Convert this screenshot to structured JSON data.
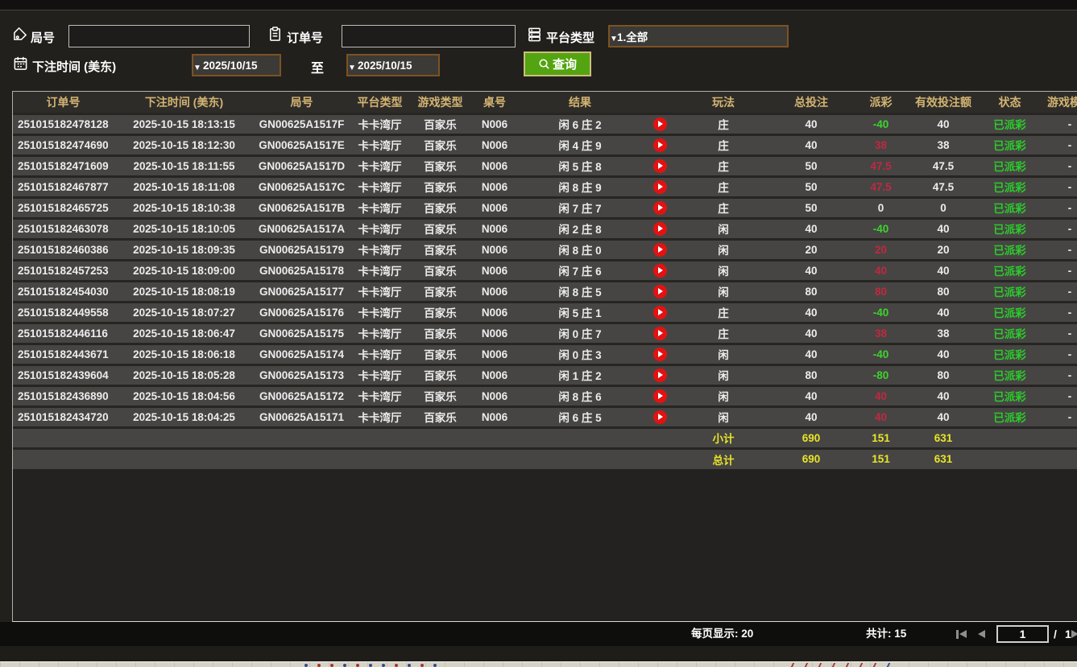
{
  "filters": {
    "round_label": "局号",
    "round_value": "",
    "order_label": "订单号",
    "order_value": "",
    "platform_label": "平台类型",
    "platform_value": "1.全部",
    "bet_time_label": "下注时间 (美东)",
    "date_from": "2025/10/15",
    "to_label": "至",
    "date_to": "2025/10/15",
    "query_label": "查询"
  },
  "icons": {
    "round": "tag-icon",
    "order": "clipboard-icon",
    "platform": "server-icon",
    "bet_time": "calendar-icon",
    "query": "search-icon",
    "result_row": "play-icon"
  },
  "colors": {
    "header_gold": "#d4b472",
    "win_red": "#c12840",
    "loss_green": "#3fd22f",
    "status_green": "#2ccb2c",
    "total_yellow": "#e8e428",
    "query_green": "#53a410"
  },
  "table": {
    "columns": [
      {
        "key": "order",
        "label": "订单号"
      },
      {
        "key": "time",
        "label": "下注时间 (美东)"
      },
      {
        "key": "round",
        "label": "局号"
      },
      {
        "key": "platform",
        "label": "平台类型"
      },
      {
        "key": "game",
        "label": "游戏类型"
      },
      {
        "key": "table_no",
        "label": "桌号"
      },
      {
        "key": "result",
        "label": "结果"
      },
      {
        "key": "play",
        "label": ""
      },
      {
        "key": "playtype",
        "label": "玩法"
      },
      {
        "key": "bet",
        "label": "总投注"
      },
      {
        "key": "payout",
        "label": "派彩"
      },
      {
        "key": "valid",
        "label": "有效投注额"
      },
      {
        "key": "status",
        "label": "状态"
      },
      {
        "key": "mode",
        "label": "游戏模式"
      }
    ],
    "rows": [
      {
        "order": "251015182478128",
        "time": "2025-10-15 18:13:15",
        "round": "GN00625A1517F",
        "platform": "卡卡湾厅",
        "game": "百家乐",
        "table_no": "N006",
        "result": "闲 6 庄 2",
        "playtype": "庄",
        "bet": "40",
        "payout": "-40",
        "payout_class": "neg",
        "valid": "40",
        "status": "已派彩",
        "mode": "-"
      },
      {
        "order": "251015182474690",
        "time": "2025-10-15 18:12:30",
        "round": "GN00625A1517E",
        "platform": "卡卡湾厅",
        "game": "百家乐",
        "table_no": "N006",
        "result": "闲 4 庄 9",
        "playtype": "庄",
        "bet": "40",
        "payout": "38",
        "payout_class": "pos",
        "valid": "38",
        "status": "已派彩",
        "mode": "-"
      },
      {
        "order": "251015182471609",
        "time": "2025-10-15 18:11:55",
        "round": "GN00625A1517D",
        "platform": "卡卡湾厅",
        "game": "百家乐",
        "table_no": "N006",
        "result": "闲 5 庄 8",
        "playtype": "庄",
        "bet": "50",
        "payout": "47.5",
        "payout_class": "pos",
        "valid": "47.5",
        "status": "已派彩",
        "mode": "-"
      },
      {
        "order": "251015182467877",
        "time": "2025-10-15 18:11:08",
        "round": "GN00625A1517C",
        "platform": "卡卡湾厅",
        "game": "百家乐",
        "table_no": "N006",
        "result": "闲 8 庄 9",
        "playtype": "庄",
        "bet": "50",
        "payout": "47.5",
        "payout_class": "pos",
        "valid": "47.5",
        "status": "已派彩",
        "mode": "-"
      },
      {
        "order": "251015182465725",
        "time": "2025-10-15 18:10:38",
        "round": "GN00625A1517B",
        "platform": "卡卡湾厅",
        "game": "百家乐",
        "table_no": "N006",
        "result": "闲 7 庄 7",
        "playtype": "庄",
        "bet": "50",
        "payout": "0",
        "payout_class": "zero",
        "valid": "0",
        "status": "已派彩",
        "mode": "-"
      },
      {
        "order": "251015182463078",
        "time": "2025-10-15 18:10:05",
        "round": "GN00625A1517A",
        "platform": "卡卡湾厅",
        "game": "百家乐",
        "table_no": "N006",
        "result": "闲 2 庄 8",
        "playtype": "闲",
        "bet": "40",
        "payout": "-40",
        "payout_class": "neg",
        "valid": "40",
        "status": "已派彩",
        "mode": "-"
      },
      {
        "order": "251015182460386",
        "time": "2025-10-15 18:09:35",
        "round": "GN00625A15179",
        "platform": "卡卡湾厅",
        "game": "百家乐",
        "table_no": "N006",
        "result": "闲 8 庄 0",
        "playtype": "闲",
        "bet": "20",
        "payout": "20",
        "payout_class": "pos",
        "valid": "20",
        "status": "已派彩",
        "mode": "-"
      },
      {
        "order": "251015182457253",
        "time": "2025-10-15 18:09:00",
        "round": "GN00625A15178",
        "platform": "卡卡湾厅",
        "game": "百家乐",
        "table_no": "N006",
        "result": "闲 7 庄 6",
        "playtype": "闲",
        "bet": "40",
        "payout": "40",
        "payout_class": "pos",
        "valid": "40",
        "status": "已派彩",
        "mode": "-"
      },
      {
        "order": "251015182454030",
        "time": "2025-10-15 18:08:19",
        "round": "GN00625A15177",
        "platform": "卡卡湾厅",
        "game": "百家乐",
        "table_no": "N006",
        "result": "闲 8 庄 5",
        "playtype": "闲",
        "bet": "80",
        "payout": "80",
        "payout_class": "pos",
        "valid": "80",
        "status": "已派彩",
        "mode": "-"
      },
      {
        "order": "251015182449558",
        "time": "2025-10-15 18:07:27",
        "round": "GN00625A15176",
        "platform": "卡卡湾厅",
        "game": "百家乐",
        "table_no": "N006",
        "result": "闲 5 庄 1",
        "playtype": "庄",
        "bet": "40",
        "payout": "-40",
        "payout_class": "neg",
        "valid": "40",
        "status": "已派彩",
        "mode": "-"
      },
      {
        "order": "251015182446116",
        "time": "2025-10-15 18:06:47",
        "round": "GN00625A15175",
        "platform": "卡卡湾厅",
        "game": "百家乐",
        "table_no": "N006",
        "result": "闲 0 庄 7",
        "playtype": "庄",
        "bet": "40",
        "payout": "38",
        "payout_class": "pos",
        "valid": "38",
        "status": "已派彩",
        "mode": "-"
      },
      {
        "order": "251015182443671",
        "time": "2025-10-15 18:06:18",
        "round": "GN00625A15174",
        "platform": "卡卡湾厅",
        "game": "百家乐",
        "table_no": "N006",
        "result": "闲 0 庄 3",
        "playtype": "闲",
        "bet": "40",
        "payout": "-40",
        "payout_class": "neg",
        "valid": "40",
        "status": "已派彩",
        "mode": "-"
      },
      {
        "order": "251015182439604",
        "time": "2025-10-15 18:05:28",
        "round": "GN00625A15173",
        "platform": "卡卡湾厅",
        "game": "百家乐",
        "table_no": "N006",
        "result": "闲 1 庄 2",
        "playtype": "闲",
        "bet": "80",
        "payout": "-80",
        "payout_class": "neg",
        "valid": "80",
        "status": "已派彩",
        "mode": "-"
      },
      {
        "order": "251015182436890",
        "time": "2025-10-15 18:04:56",
        "round": "GN00625A15172",
        "platform": "卡卡湾厅",
        "game": "百家乐",
        "table_no": "N006",
        "result": "闲 8 庄 6",
        "playtype": "闲",
        "bet": "40",
        "payout": "40",
        "payout_class": "pos",
        "valid": "40",
        "status": "已派彩",
        "mode": "-"
      },
      {
        "order": "251015182434720",
        "time": "2025-10-15 18:04:25",
        "round": "GN00625A15171",
        "platform": "卡卡湾厅",
        "game": "百家乐",
        "table_no": "N006",
        "result": "闲 6 庄 5",
        "playtype": "闲",
        "bet": "40",
        "payout": "40",
        "payout_class": "pos",
        "valid": "40",
        "status": "已派彩",
        "mode": "-"
      }
    ],
    "subtotal": {
      "label": "小计",
      "bet": "690",
      "payout": "151",
      "valid": "631"
    },
    "total": {
      "label": "总计",
      "bet": "690",
      "payout": "151",
      "valid": "631"
    }
  },
  "footer": {
    "per_page": "每页显示: 20",
    "total_count": "共计: 15",
    "page_current": "1",
    "page_separator": "/",
    "page_total": "1"
  }
}
